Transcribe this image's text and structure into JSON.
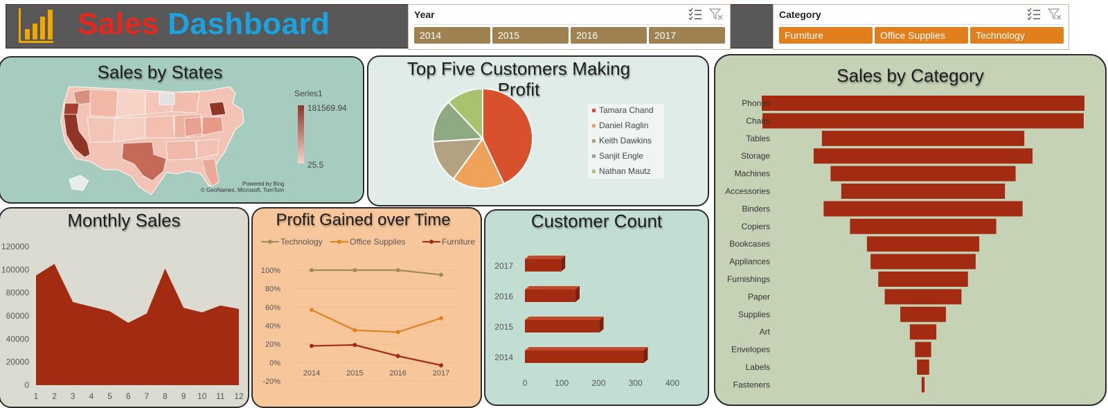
{
  "header": {
    "title_word1": "Sales",
    "title_word2": "Dashboard"
  },
  "icons": {
    "logo": "bar-chart-icon",
    "multiselect": "multi-select-icon",
    "clear_filter": "clear-filter-icon"
  },
  "colors": {
    "accent_red": "#a32b12",
    "year_button": "#a08150",
    "category_button": "#e07f1c"
  },
  "year_slicer": {
    "label": "Year",
    "options": [
      "2014",
      "2015",
      "2016",
      "2017"
    ]
  },
  "category_slicer": {
    "label": "Category",
    "options": [
      "Furniture",
      "Office Supplies",
      "Technology"
    ]
  },
  "map_panel": {
    "title": "Sales by States",
    "legend_series": "Series1",
    "legend_max": "181569.94",
    "legend_min": "25.5",
    "credit1": "Powered by Bing",
    "credit2": "© GeoNames, Microsoft, TomTom"
  },
  "pie_panel": {
    "title_line1": "Top Five Customers Making",
    "title_line2": "Profit"
  },
  "monthly_panel": {
    "title": "Monthly Sales"
  },
  "profit_panel": {
    "title": "Profit Gained over Time"
  },
  "customer_panel": {
    "title": "Customer Count"
  },
  "category_panel": {
    "title": "Sales by Category"
  },
  "chart_data": [
    {
      "type": "pie",
      "title": "Top Five Customers Making Profit",
      "categories": [
        "Tamara Chand",
        "Daniel Raglin",
        "Keith Dawkins",
        "Sanjit Engle",
        "Nathan Mautz"
      ],
      "values": [
        43,
        17,
        14,
        14,
        12
      ],
      "colors": [
        "#d9502c",
        "#eea25a",
        "#b3a281",
        "#8fa982",
        "#a9c26e"
      ]
    },
    {
      "type": "area",
      "title": "Monthly Sales",
      "x": [
        1,
        2,
        3,
        4,
        5,
        6,
        7,
        8,
        9,
        10,
        11,
        12
      ],
      "values": [
        95000,
        105000,
        72000,
        68000,
        64000,
        54000,
        62000,
        101000,
        67000,
        63000,
        69000,
        66000
      ],
      "xlabel": "",
      "ylabel": "",
      "ylim": [
        0,
        120000
      ],
      "yticks": [
        "0",
        "20000",
        "40000",
        "60000",
        "80000",
        "100000",
        "120000"
      ]
    },
    {
      "type": "line",
      "title": "Profit Gained over Time",
      "categories": [
        "2014",
        "2015",
        "2016",
        "2017"
      ],
      "series": [
        {
          "name": "Technology",
          "values": [
            100,
            100,
            100,
            95
          ],
          "color": "#a08a5a"
        },
        {
          "name": "Office Supplies",
          "values": [
            57,
            35,
            33,
            48
          ],
          "color": "#e0821f"
        },
        {
          "name": "Furniture",
          "values": [
            18,
            19,
            7,
            -3
          ],
          "color": "#a32b12"
        }
      ],
      "ylim": [
        -20,
        100
      ],
      "yticks": [
        "-20%",
        "0%",
        "20%",
        "40%",
        "60%",
        "80%",
        "100%"
      ],
      "legend": "top"
    },
    {
      "type": "bar",
      "title": "Customer Count",
      "categories": [
        "2014",
        "2015",
        "2016",
        "2017"
      ],
      "values": [
        322,
        202,
        137,
        98
      ],
      "xlim": [
        0,
        400
      ],
      "xticks": [
        "0",
        "100",
        "200",
        "300",
        "400"
      ]
    },
    {
      "type": "bar",
      "title": "Sales by Category",
      "categories": [
        "Phones",
        "Chairs",
        "Tables",
        "Storage",
        "Machines",
        "Accessories",
        "Binders",
        "Copiers",
        "Bookcases",
        "Appliances",
        "Furnishings",
        "Paper",
        "Supplies",
        "Art",
        "Envelopes",
        "Labels",
        "Fasteners"
      ],
      "values": [
        330007,
        328449,
        206966,
        223844,
        189239,
        167380,
        203413,
        149528,
        114880,
        107532,
        91705,
        78479,
        46674,
        27119,
        16476,
        12486,
        3024
      ]
    }
  ]
}
